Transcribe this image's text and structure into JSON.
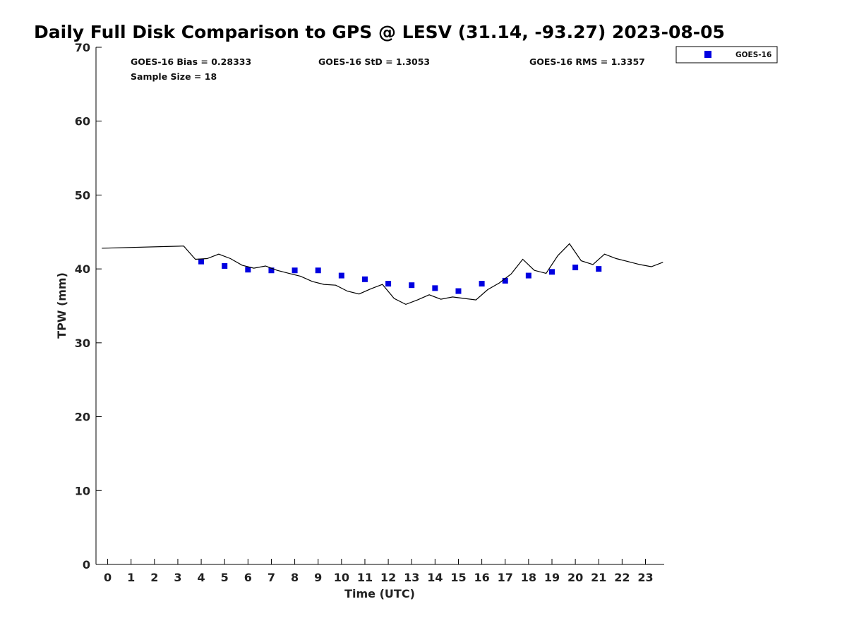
{
  "chart_data": {
    "type": "scatter",
    "title": "Daily Full Disk Comparison to GPS @ LESV (31.14, -93.27) 2023-08-05",
    "xlabel": "Time (UTC)",
    "ylabel": "TPW (mm)",
    "xlim": [
      -0.5,
      23.8
    ],
    "ylim": [
      0,
      70
    ],
    "xticks": [
      0,
      1,
      2,
      3,
      4,
      5,
      6,
      7,
      8,
      9,
      10,
      11,
      12,
      13,
      14,
      15,
      16,
      17,
      18,
      19,
      20,
      21,
      22,
      23
    ],
    "yticks": [
      0,
      10,
      20,
      30,
      40,
      50,
      60,
      70
    ],
    "grid": false,
    "legend_position": "outside-top-right",
    "stats": {
      "bias": "GOES-16 Bias = 0.28333",
      "std": "GOES-16 StD = 1.3053",
      "rms": "GOES-16 RMS = 1.3357",
      "sample": "Sample Size = 18"
    },
    "series": [
      {
        "name": "GOES-16",
        "style": "markers",
        "color": "#0000e0",
        "x": [
          4,
          5,
          6,
          7,
          8,
          9,
          10,
          11,
          12,
          13,
          14,
          15,
          16,
          17,
          18,
          19,
          20,
          21
        ],
        "y": [
          41.0,
          40.4,
          39.9,
          39.8,
          39.8,
          39.8,
          39.1,
          38.6,
          38.0,
          37.8,
          37.4,
          37.0,
          38.0,
          38.4,
          39.1,
          39.6,
          40.2,
          40.0
        ]
      },
      {
        "style": "line",
        "color": "#000000",
        "x": [
          -0.25,
          3.25,
          3.75,
          4.25,
          4.75,
          5.25,
          5.75,
          6.25,
          6.75,
          7.25,
          7.75,
          8.25,
          8.75,
          9.25,
          9.75,
          10.25,
          10.75,
          11.25,
          11.75,
          12.25,
          12.75,
          13.25,
          13.75,
          14.25,
          14.75,
          15.25,
          15.75,
          16.25,
          16.75,
          17.25,
          17.75,
          18.25,
          18.75,
          19.25,
          19.75,
          20.25,
          20.75,
          21.25,
          21.75,
          22.25,
          22.75,
          23.25,
          23.75
        ],
        "y": [
          42.8,
          43.1,
          41.3,
          41.4,
          42.0,
          41.4,
          40.5,
          40.1,
          40.4,
          39.8,
          39.4,
          39.0,
          38.3,
          37.9,
          37.8,
          37.0,
          36.6,
          37.3,
          37.9,
          36.0,
          35.2,
          35.8,
          36.5,
          35.9,
          36.2,
          36.0,
          35.8,
          37.2,
          38.1,
          39.3,
          41.3,
          39.8,
          39.4,
          41.8,
          43.4,
          41.1,
          40.6,
          42.0,
          41.4,
          41.0,
          40.6,
          40.3,
          40.9
        ]
      }
    ]
  }
}
